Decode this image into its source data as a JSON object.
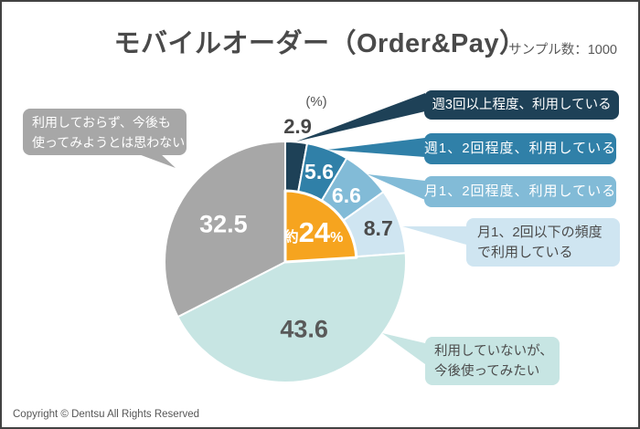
{
  "header": {
    "title": "モバイルオーダー（Order&Pay）",
    "sample_label": "サンプル数：1000"
  },
  "chart_data": {
    "type": "pie",
    "title": "モバイルオーダー（Order&Pay）",
    "sample_size": 1000,
    "unit_label": "(%)",
    "start_angle_deg": 0,
    "direction": "clockwise",
    "segments": [
      {
        "label": "週3回以上程度、利用している",
        "value": 2.9,
        "color": "#1e4157",
        "value_label_color": "#474747",
        "legend_text_color": "#ffffff",
        "legend_lines": [
          "週3回以上程度、利用している"
        ]
      },
      {
        "label": "週1、2回程度、利用している",
        "value": 5.6,
        "color": "#3080a8",
        "value_label_color": "#ffffff",
        "legend_text_color": "#ffffff",
        "legend_lines": [
          "週1、2回程度、利用している"
        ]
      },
      {
        "label": "月1、2回程度、利用している",
        "value": 6.6,
        "color": "#82bbd7",
        "value_label_color": "#ffffff",
        "legend_text_color": "#ffffff",
        "legend_lines": [
          "月1、2回程度、利用している"
        ]
      },
      {
        "label": "月1、2回以下の頻度で利用している",
        "value": 8.7,
        "color": "#cfe5f1",
        "value_label_color": "#4b4b4b",
        "legend_text_color": "#4b4b4b",
        "legend_lines": [
          "月1、2回以下の頻度",
          "で利用している"
        ]
      },
      {
        "label": "利用していないが、今後使ってみたい",
        "value": 43.6,
        "color": "#c7e5e3",
        "value_label_color": "#595959",
        "legend_text_color": "#4b4b4b",
        "legend_lines": [
          "利用していないが、",
          "今後使ってみたい"
        ]
      },
      {
        "label": "利用しておらず、今後も使ってみようとは思わない",
        "value": 32.5,
        "color": "#a7a7a7",
        "value_label_color": "#ffffff",
        "legend_text_color": "#ffffff",
        "legend_lines": [
          "利用しておらず、今後も",
          "使ってみようとは思わない"
        ]
      }
    ],
    "highlight": {
      "prefix": "約",
      "number": "24",
      "suffix": "%",
      "span_pct": 24,
      "color": "#f6a41f",
      "text_color": "#ffffff"
    }
  },
  "footer": {
    "copyright": "Copyright © Dentsu All Rights Reserved"
  }
}
